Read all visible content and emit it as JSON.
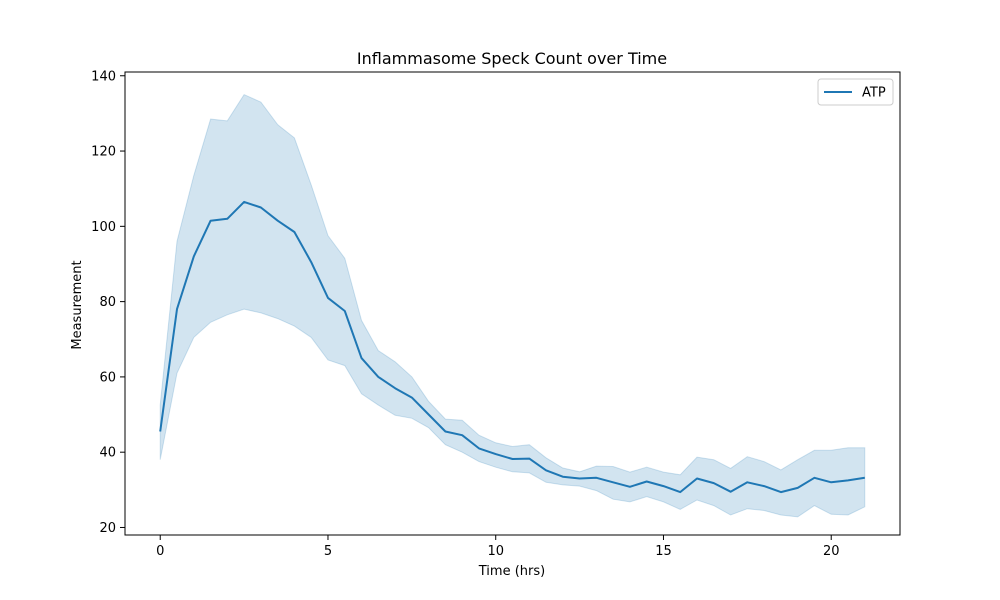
{
  "chart_data": {
    "type": "line",
    "title": "Inflammasome Speck Count over Time",
    "xlabel": "Time (hrs)",
    "ylabel": "Measurement",
    "xlim": [
      -1.05,
      22.05
    ],
    "ylim": [
      18,
      141
    ],
    "xticks": [
      0,
      5,
      10,
      15,
      20
    ],
    "yticks": [
      20,
      40,
      60,
      80,
      100,
      120,
      140
    ],
    "grid": false,
    "legend_position": "top-right",
    "colors": {
      "line": "#1f77b4",
      "band": "#1f77b4"
    },
    "series": [
      {
        "name": "ATP",
        "x": [
          0,
          0.5,
          1,
          1.5,
          2,
          2.5,
          3,
          3.5,
          4,
          4.5,
          5,
          5.5,
          6,
          6.5,
          7,
          7.5,
          8,
          8.5,
          9,
          9.5,
          10,
          10.5,
          11,
          11.5,
          12,
          12.5,
          13,
          13.5,
          14,
          14.5,
          15,
          15.5,
          16,
          16.5,
          17,
          17.5,
          18,
          18.5,
          19,
          19.5,
          20,
          20.5,
          21
        ],
        "y": [
          45.5,
          78,
          92,
          101.5,
          102,
          106.5,
          105,
          101.5,
          98.5,
          90.5,
          81,
          77.5,
          65,
          60,
          57,
          54.5,
          50,
          45.5,
          44.5,
          41,
          39.5,
          38.2,
          38.3,
          35.2,
          33.5,
          33,
          33.2,
          32,
          30.8,
          32.2,
          31,
          29.4,
          33,
          31.8,
          29.5,
          32,
          31,
          29.4,
          30.5,
          33.2,
          32,
          32.5,
          33.2
        ],
        "lower": [
          38,
          61,
          70.5,
          74.5,
          76.5,
          78,
          77,
          75.5,
          73.5,
          70.5,
          64.5,
          63,
          55.5,
          52.5,
          49.8,
          49,
          46.5,
          42,
          40,
          37.5,
          36,
          34.8,
          34.5,
          32,
          31.3,
          31,
          29.8,
          27.5,
          26.8,
          28.2,
          26.8,
          24.8,
          27.3,
          25.8,
          23.3,
          25,
          24.5,
          23.3,
          22.8,
          25.8,
          23.5,
          23.3,
          25.5
        ],
        "upper": [
          52.5,
          96,
          113.5,
          128.5,
          128,
          135,
          133,
          127,
          123.5,
          111,
          97.5,
          91.5,
          75,
          67,
          64,
          60,
          53.5,
          48.8,
          48.5,
          44.5,
          42.5,
          41.5,
          42,
          38.5,
          35.8,
          34.8,
          36.3,
          36.2,
          34.7,
          36,
          34.7,
          34,
          38.7,
          38,
          35.7,
          38.8,
          37.5,
          35.3,
          38,
          40.5,
          40.5,
          41.2,
          41.2
        ]
      }
    ]
  }
}
